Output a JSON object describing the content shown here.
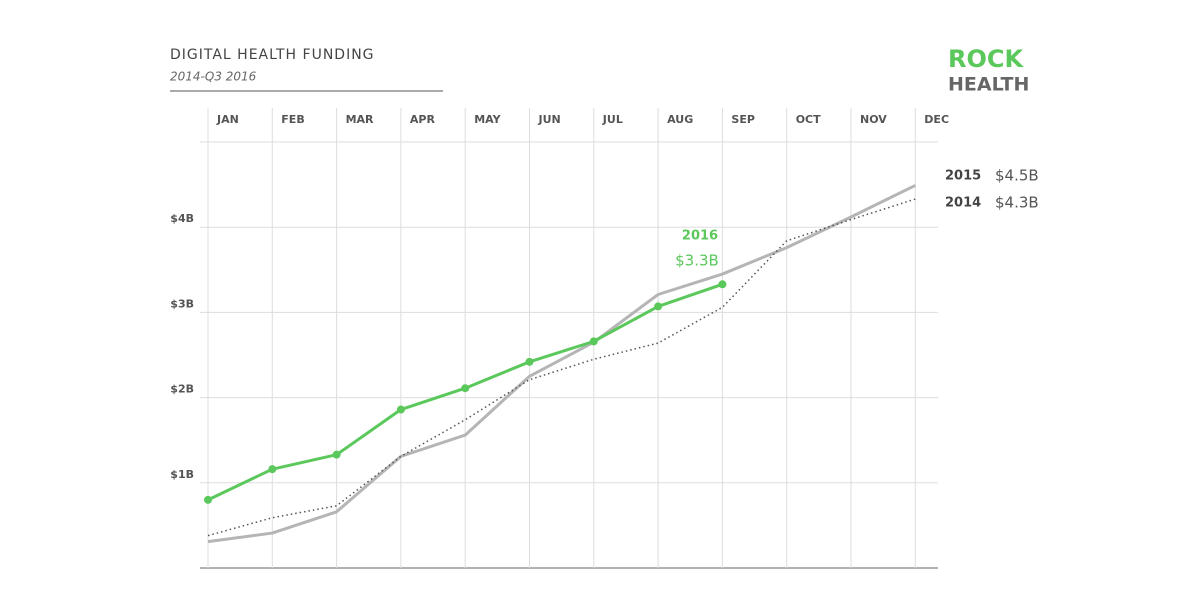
{
  "chart_data": {
    "type": "line",
    "title": "DIGITAL HEALTH FUNDING",
    "subtitle": "2014-Q3 2016",
    "logo": {
      "top": "ROCK",
      "bottom": "HEALTH"
    },
    "categories": [
      "JAN",
      "FEB",
      "MAR",
      "APR",
      "MAY",
      "JUN",
      "JUL",
      "AUG",
      "SEP",
      "OCT",
      "NOV",
      "DEC"
    ],
    "ylim": [
      0,
      5
    ],
    "yticks": [
      {
        "value": 1,
        "label": "$1B"
      },
      {
        "value": 2,
        "label": "$2B"
      },
      {
        "value": 3,
        "label": "$3B"
      },
      {
        "value": 4,
        "label": "$4B"
      }
    ],
    "grid": true,
    "series": [
      {
        "name": "2015",
        "color": "#b5b5b5",
        "style": "solid",
        "end_label": "$4.5B",
        "values": [
          0.31,
          0.41,
          0.66,
          1.31,
          1.56,
          2.25,
          2.65,
          3.21,
          3.45,
          3.76,
          4.12,
          4.49
        ]
      },
      {
        "name": "2014",
        "color": "#555555",
        "style": "dotted",
        "end_label": "$4.3B",
        "values": [
          0.38,
          0.59,
          0.73,
          1.31,
          1.74,
          2.21,
          2.45,
          2.64,
          3.06,
          3.84,
          4.09,
          4.33
        ]
      },
      {
        "name": "2016",
        "color": "#5bc85b",
        "style": "solid",
        "markers": true,
        "end_label": "$3.3B",
        "values": [
          0.8,
          1.16,
          1.33,
          1.86,
          2.11,
          2.42,
          2.66,
          3.07,
          3.33,
          null,
          null,
          null
        ]
      }
    ]
  }
}
